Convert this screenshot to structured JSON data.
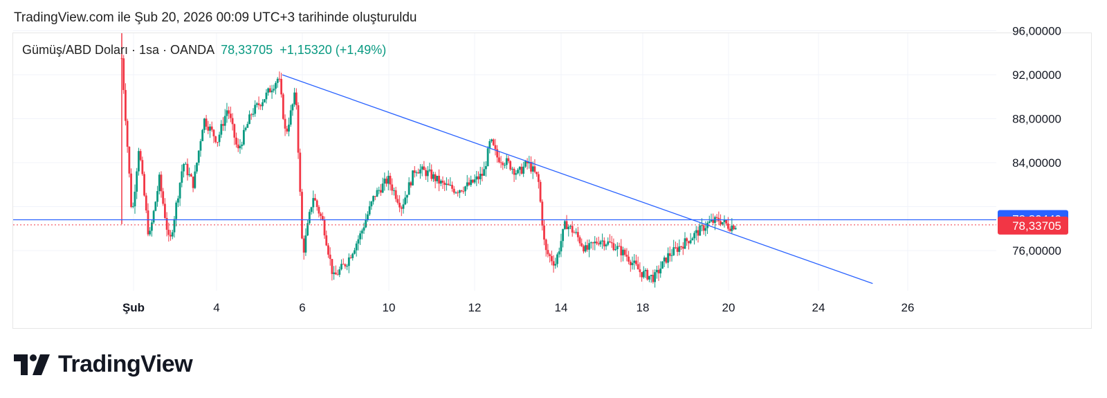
{
  "header": {
    "caption": "TradingView.com ile Şub 20, 2026 00:09 UTC+3 tarihinde oluşturuldu"
  },
  "legend": {
    "symbol": "Gümüş/ABD Doları · 1sa · OANDA",
    "last": "78,33705",
    "change": "+1,15320 (+1,49%)"
  },
  "brand": {
    "logo_text": "TradingView"
  },
  "colors": {
    "up": "#089981",
    "down": "#f23645",
    "trendline": "#2962ff",
    "price_badge": "#f23645",
    "line_badge": "#2962ff"
  },
  "chart_data": {
    "type": "candlestick",
    "title": "",
    "xlabel": "",
    "ylabel": "",
    "ylim": [
      72.9,
      98.6
    ],
    "x_ticks": [
      "Şub",
      "4",
      "6",
      "10",
      "12",
      "14",
      "18",
      "20",
      "24",
      "26"
    ],
    "y_ticks": [
      "96,00000",
      "92,00000",
      "88,00000",
      "84,00000",
      "76,00000"
    ],
    "close_path": [
      {
        "x": 0.0,
        "y": 93.5
      },
      {
        "x": 0.3,
        "y": 79.0
      },
      {
        "x": 0.5,
        "y": 85.5
      },
      {
        "x": 0.8,
        "y": 77.0
      },
      {
        "x": 1.1,
        "y": 82.5
      },
      {
        "x": 1.4,
        "y": 76.5
      },
      {
        "x": 1.8,
        "y": 84.0
      },
      {
        "x": 2.1,
        "y": 82.0
      },
      {
        "x": 2.4,
        "y": 88.0
      },
      {
        "x": 2.8,
        "y": 86.0
      },
      {
        "x": 3.1,
        "y": 89.0
      },
      {
        "x": 3.4,
        "y": 85.0
      },
      {
        "x": 3.8,
        "y": 88.5
      },
      {
        "x": 4.2,
        "y": 90.0
      },
      {
        "x": 4.6,
        "y": 91.8
      },
      {
        "x": 4.8,
        "y": 86.5
      },
      {
        "x": 5.1,
        "y": 90.5
      },
      {
        "x": 5.3,
        "y": 75.5
      },
      {
        "x": 5.6,
        "y": 81.0
      },
      {
        "x": 5.9,
        "y": 78.5
      },
      {
        "x": 6.2,
        "y": 73.5
      },
      {
        "x": 6.6,
        "y": 75.0
      },
      {
        "x": 7.0,
        "y": 77.5
      },
      {
        "x": 7.4,
        "y": 81.0
      },
      {
        "x": 7.8,
        "y": 82.5
      },
      {
        "x": 8.2,
        "y": 80.0
      },
      {
        "x": 8.6,
        "y": 83.5
      },
      {
        "x": 9.0,
        "y": 83.0
      },
      {
        "x": 9.4,
        "y": 82.0
      },
      {
        "x": 9.8,
        "y": 81.5
      },
      {
        "x": 10.2,
        "y": 82.0
      },
      {
        "x": 10.6,
        "y": 83.0
      },
      {
        "x": 10.8,
        "y": 86.0
      },
      {
        "x": 11.0,
        "y": 84.5
      },
      {
        "x": 11.3,
        "y": 84.0
      },
      {
        "x": 11.6,
        "y": 83.0
      },
      {
        "x": 11.9,
        "y": 84.0
      },
      {
        "x": 12.2,
        "y": 82.5
      },
      {
        "x": 12.4,
        "y": 76.0
      },
      {
        "x": 12.7,
        "y": 74.8
      },
      {
        "x": 13.0,
        "y": 78.5
      },
      {
        "x": 13.3,
        "y": 77.5
      },
      {
        "x": 13.6,
        "y": 76.0
      },
      {
        "x": 14.0,
        "y": 77.0
      },
      {
        "x": 14.4,
        "y": 76.5
      },
      {
        "x": 14.8,
        "y": 75.5
      },
      {
        "x": 15.2,
        "y": 74.0
      },
      {
        "x": 15.6,
        "y": 73.5
      },
      {
        "x": 16.0,
        "y": 75.5
      },
      {
        "x": 16.4,
        "y": 76.5
      },
      {
        "x": 16.8,
        "y": 77.5
      },
      {
        "x": 17.2,
        "y": 78.5
      },
      {
        "x": 17.5,
        "y": 78.8
      },
      {
        "x": 17.8,
        "y": 78.2
      },
      {
        "x": 18.0,
        "y": 78.34
      }
    ],
    "trendline": {
      "from": {
        "x": 4.7,
        "y": 92.0
      },
      "to": {
        "x": 22.0,
        "y": 73.0
      }
    },
    "horizontal_line": {
      "price": 78.8044,
      "label": "78,80440"
    },
    "last_price": {
      "price": 78.33705,
      "label": "78,33705"
    }
  }
}
